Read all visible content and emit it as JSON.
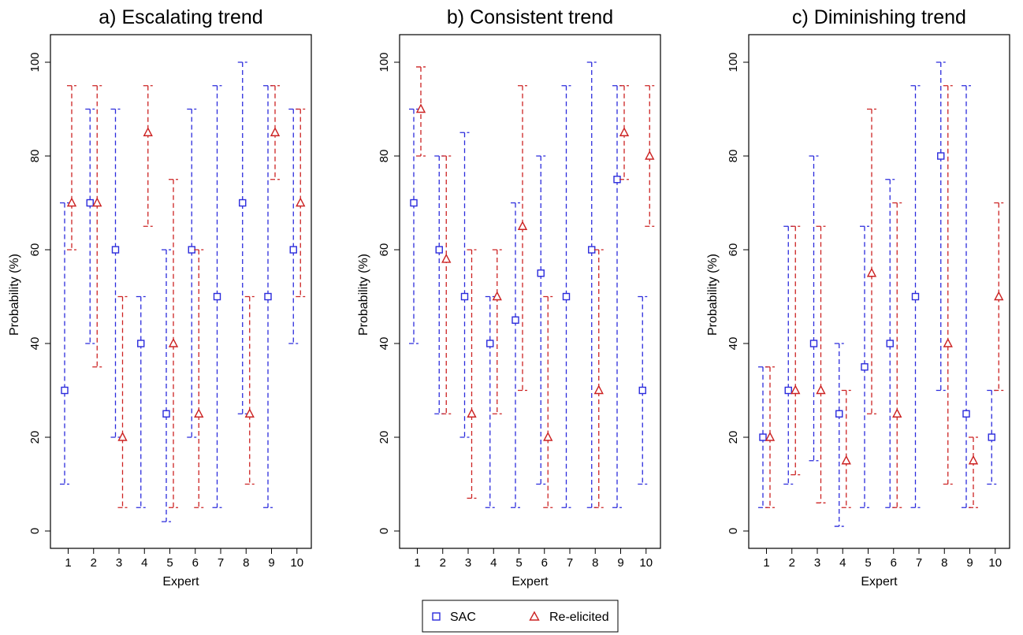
{
  "figure": {
    "legend": {
      "entries": [
        {
          "label": "SAC",
          "color": "#2b2bdc",
          "marker": "square"
        },
        {
          "label": "Re-elicited",
          "color": "#cc2222",
          "marker": "triangle"
        }
      ]
    }
  },
  "chart_data": [
    {
      "type": "scatter",
      "title": "a) Escalating trend",
      "xlabel": "Expert",
      "ylabel": "Probability (%)",
      "ylim": [
        0,
        100
      ],
      "yticks": [
        0,
        20,
        40,
        60,
        80,
        100
      ],
      "categories": [
        "1",
        "2",
        "3",
        "4",
        "5",
        "6",
        "7",
        "8",
        "9",
        "10"
      ],
      "grid": false,
      "legend_position": "bottom",
      "series": [
        {
          "name": "SAC",
          "color": "#2b2bdc",
          "marker": "square",
          "values": [
            30,
            70,
            60,
            40,
            25,
            60,
            50,
            70,
            50,
            60
          ],
          "lower": [
            10,
            40,
            20,
            5,
            2,
            20,
            5,
            25,
            5,
            40
          ],
          "upper": [
            70,
            90,
            90,
            50,
            60,
            90,
            95,
            100,
            95,
            90
          ]
        },
        {
          "name": "Re-elicited",
          "color": "#cc2222",
          "marker": "triangle",
          "values": [
            70,
            70,
            20,
            85,
            40,
            25,
            null,
            25,
            85,
            70
          ],
          "lower": [
            60,
            35,
            5,
            65,
            5,
            5,
            null,
            10,
            75,
            50
          ],
          "upper": [
            95,
            95,
            50,
            95,
            75,
            60,
            null,
            50,
            95,
            90
          ]
        }
      ]
    },
    {
      "type": "scatter",
      "title": "b) Consistent trend",
      "xlabel": "Expert",
      "ylabel": "Probability (%)",
      "ylim": [
        0,
        100
      ],
      "yticks": [
        0,
        20,
        40,
        60,
        80,
        100
      ],
      "categories": [
        "1",
        "2",
        "3",
        "4",
        "5",
        "6",
        "7",
        "8",
        "9",
        "10"
      ],
      "grid": false,
      "legend_position": "bottom",
      "series": [
        {
          "name": "SAC",
          "color": "#2b2bdc",
          "marker": "square",
          "values": [
            70,
            60,
            50,
            40,
            45,
            55,
            50,
            60,
            75,
            30
          ],
          "lower": [
            40,
            25,
            20,
            5,
            5,
            10,
            5,
            5,
            5,
            10
          ],
          "upper": [
            90,
            80,
            85,
            50,
            70,
            80,
            95,
            100,
            95,
            50
          ]
        },
        {
          "name": "Re-elicited",
          "color": "#cc2222",
          "marker": "triangle",
          "values": [
            90,
            58,
            25,
            50,
            65,
            20,
            null,
            30,
            85,
            80
          ],
          "lower": [
            80,
            25,
            7,
            25,
            30,
            5,
            null,
            5,
            75,
            65
          ],
          "upper": [
            99,
            80,
            60,
            60,
            95,
            50,
            null,
            60,
            95,
            95
          ]
        }
      ]
    },
    {
      "type": "scatter",
      "title": "c) Diminishing trend",
      "xlabel": "Expert",
      "ylabel": "Probability (%)",
      "ylim": [
        0,
        100
      ],
      "yticks": [
        0,
        20,
        40,
        60,
        80,
        100
      ],
      "categories": [
        "1",
        "2",
        "3",
        "4",
        "5",
        "6",
        "7",
        "8",
        "9",
        "10"
      ],
      "grid": false,
      "legend_position": "bottom",
      "series": [
        {
          "name": "SAC",
          "color": "#2b2bdc",
          "marker": "square",
          "values": [
            20,
            30,
            40,
            25,
            35,
            40,
            50,
            80,
            25,
            20
          ],
          "lower": [
            5,
            10,
            15,
            1,
            5,
            5,
            5,
            30,
            5,
            10
          ],
          "upper": [
            35,
            65,
            80,
            40,
            65,
            75,
            95,
            100,
            95,
            30
          ]
        },
        {
          "name": "Re-elicited",
          "color": "#cc2222",
          "marker": "triangle",
          "values": [
            20,
            30,
            30,
            15,
            55,
            25,
            null,
            40,
            15,
            50
          ],
          "lower": [
            5,
            12,
            6,
            5,
            25,
            5,
            null,
            10,
            5,
            30
          ],
          "upper": [
            35,
            65,
            65,
            30,
            90,
            70,
            null,
            95,
            20,
            70
          ]
        }
      ]
    }
  ]
}
